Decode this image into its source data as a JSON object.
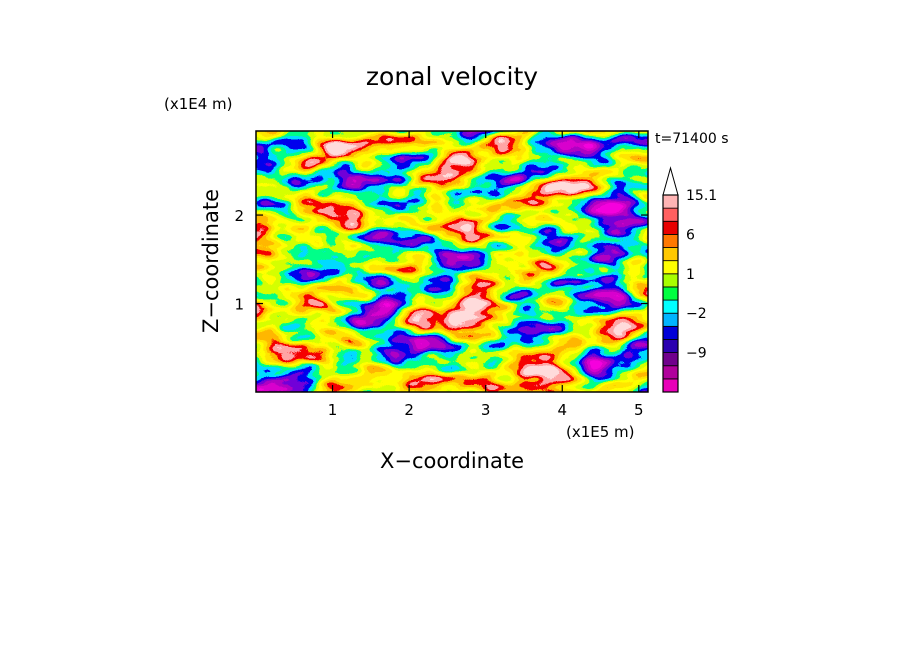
{
  "chart_data": {
    "type": "heatmap",
    "title": "zonal velocity",
    "xlabel": "X−coordinate",
    "ylabel": "Z−coordinate",
    "x_scale_label": "(x1E5 m)",
    "y_scale_label": "(x1E4 m)",
    "time_label": "t=71400 s",
    "xlim": [
      0,
      5.12
    ],
    "ylim": [
      0,
      2.95
    ],
    "x_ticks": [
      1,
      2,
      3,
      4,
      5
    ],
    "x_tick_labels": [
      "1",
      "2",
      "3",
      "4",
      "5"
    ],
    "y_ticks": [
      1,
      2
    ],
    "y_tick_labels": [
      "1",
      "2"
    ],
    "colorbar": {
      "levels": [
        -15,
        -12,
        -9,
        -6,
        -3,
        -2,
        -1,
        0,
        1,
        2,
        3,
        6,
        9,
        12,
        15.1
      ],
      "colors": [
        "#e800b8",
        "#b0009c",
        "#70008c",
        "#2a00b0",
        "#0000d8",
        "#00b4ff",
        "#00ffff",
        "#00ff40",
        "#a8ff00",
        "#ffff00",
        "#ffc800",
        "#ff7800",
        "#e80000",
        "#ff6060",
        "#ffb4b4"
      ],
      "labels": [
        {
          "value": 15.1,
          "text": "15.1"
        },
        {
          "value": 6,
          "text": "6"
        },
        {
          "value": 1,
          "text": "1"
        },
        {
          "value": -2,
          "text": "−2"
        },
        {
          "value": -9,
          "text": "−9"
        }
      ]
    }
  }
}
